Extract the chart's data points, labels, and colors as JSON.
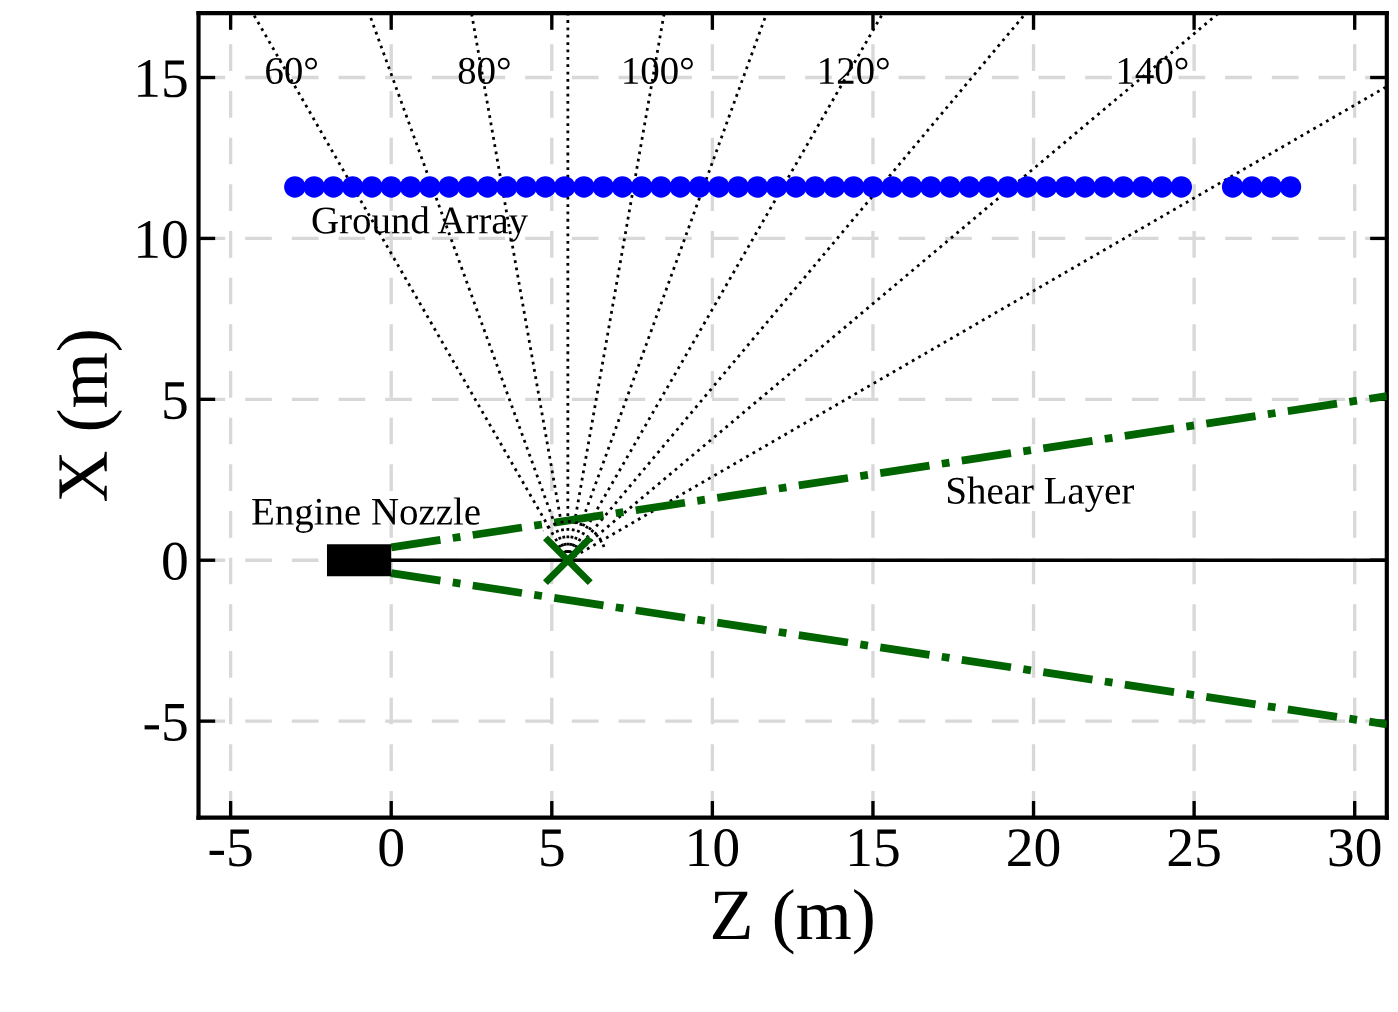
{
  "chart_data": {
    "type": "line",
    "xlabel": "Z (m)",
    "ylabel": "X (m)",
    "xlim": [
      -6,
      31
    ],
    "ylim": [
      -8,
      17
    ],
    "xticks": [
      -5,
      0,
      5,
      10,
      15,
      20,
      25,
      30
    ],
    "yticks": [
      -5,
      0,
      5,
      10,
      15
    ],
    "grid": true,
    "series": [
      {
        "type": "scatter",
        "color": "#0000ff",
        "marker": "circle",
        "x": [
          -3.0,
          -2.4,
          -1.8,
          -1.2,
          -0.6,
          0.0,
          0.6,
          1.2,
          1.8,
          2.4,
          3.0,
          3.6,
          4.2,
          4.8,
          5.4,
          6.0,
          6.6,
          7.2,
          7.8,
          8.4,
          9.0,
          9.6,
          10.2,
          10.8,
          11.4,
          12.0,
          12.6,
          13.2,
          13.8,
          14.4,
          15.0,
          15.6,
          16.2,
          16.8,
          17.4,
          18.0,
          18.6,
          19.2,
          19.8,
          20.4,
          21.0,
          21.6,
          22.2,
          22.8,
          23.4,
          24.0,
          24.6,
          26.2,
          26.8,
          27.4,
          28.0
        ],
        "values": [
          11.6,
          11.6,
          11.6,
          11.6,
          11.6,
          11.6,
          11.6,
          11.6,
          11.6,
          11.6,
          11.6,
          11.6,
          11.6,
          11.6,
          11.6,
          11.6,
          11.6,
          11.6,
          11.6,
          11.6,
          11.6,
          11.6,
          11.6,
          11.6,
          11.6,
          11.6,
          11.6,
          11.6,
          11.6,
          11.6,
          11.6,
          11.6,
          11.6,
          11.6,
          11.6,
          11.6,
          11.6,
          11.6,
          11.6,
          11.6,
          11.6,
          11.6,
          11.6,
          11.6,
          11.6,
          11.6,
          11.6,
          11.6,
          11.6,
          11.6,
          11.6
        ]
      },
      {
        "type": "line",
        "color": "#000000",
        "line_style": "dotted",
        "x": [
          5.5,
          -4.31
        ],
        "values": [
          0,
          17
        ]
      },
      {
        "type": "line",
        "color": "#000000",
        "line_style": "dotted",
        "x": [
          5.5,
          -0.69
        ],
        "values": [
          0,
          17
        ]
      },
      {
        "type": "line",
        "color": "#000000",
        "line_style": "dotted",
        "x": [
          5.5,
          2.5
        ],
        "values": [
          0,
          17
        ]
      },
      {
        "color": "#000000",
        "line_style": "dotted",
        "x": [
          5.5,
          5.5
        ],
        "values": [
          0,
          17
        ]
      },
      {
        "type": "line",
        "color": "#000000",
        "line_style": "dotted",
        "x": [
          5.5,
          8.5
        ],
        "values": [
          0,
          17
        ]
      },
      {
        "type": "line",
        "color": "#000000",
        "line_style": "dotted",
        "x": [
          5.5,
          11.69
        ],
        "values": [
          0,
          17
        ]
      },
      {
        "type": "line",
        "color": "#000000",
        "line_style": "dotted",
        "x": [
          5.5,
          15.31
        ],
        "values": [
          0,
          17
        ]
      },
      {
        "type": "line",
        "color": "#000000",
        "line_style": "dotted",
        "x": [
          5.5,
          19.76
        ],
        "values": [
          0,
          17
        ]
      },
      {
        "type": "line",
        "color": "#000000",
        "line_style": "dotted",
        "x": [
          5.5,
          25.76
        ],
        "values": [
          0,
          17
        ]
      },
      {
        "type": "line",
        "color": "#000000",
        "line_style": "dotted",
        "x": [
          5.5,
          31
        ],
        "values": [
          0,
          14.72
        ]
      },
      {
        "type": "line",
        "color": "#000000",
        "line_style": "solid",
        "x": [
          0,
          31
        ],
        "values": [
          0,
          0
        ]
      },
      {
        "type": "line",
        "color": "#006400",
        "line_style": "dashdot",
        "x": [
          0,
          31
        ],
        "values": [
          0.4,
          5.1
        ]
      },
      {
        "type": "line",
        "color": "#006400",
        "line_style": "dashdot",
        "x": [
          0,
          31
        ],
        "values": [
          -0.4,
          -5.1
        ]
      },
      {
        "type": "scatter",
        "color": "#006400",
        "marker": "cross",
        "x": [
          5.5
        ],
        "values": [
          0
        ]
      }
    ],
    "annotations": [
      {
        "text": "60°",
        "x": -3.1,
        "y": 15.1
      },
      {
        "text": "80°",
        "x": 2.9,
        "y": 15.1
      },
      {
        "text": "100°",
        "x": 8.3,
        "y": 15.1
      },
      {
        "text": "120°",
        "x": 14.4,
        "y": 15.1
      },
      {
        "text": "140°",
        "x": 23.7,
        "y": 15.1
      },
      "Ground Array",
      "Engine Nozzle",
      "Shear Layer"
    ]
  }
}
